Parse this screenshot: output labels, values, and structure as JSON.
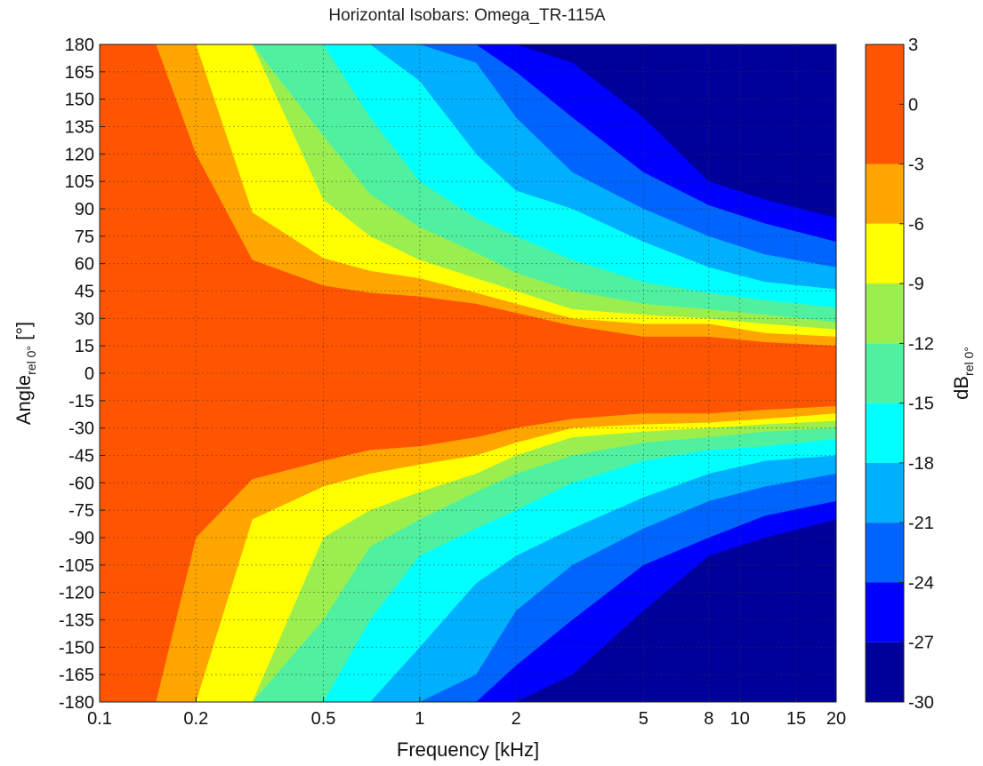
{
  "chart_data": {
    "type": "heatmap",
    "title": "Horizontal Isobars: Omega_TR-115A",
    "xlabel": "Frequency [kHz]",
    "ylabel": {
      "main": "Angle",
      "subscript": "rel 0°",
      "unit": " [°]"
    },
    "colorbar_label": {
      "main": "dB",
      "subscript": "rel 0°"
    },
    "x_scale": "log",
    "xlim": [
      0.1,
      20
    ],
    "ylim": [
      -180,
      180
    ],
    "x_ticks": [
      0.1,
      0.2,
      0.5,
      1,
      2,
      5,
      8,
      10,
      15,
      20
    ],
    "x_tick_labels": [
      "0.1",
      "0.2",
      "0.5",
      "1",
      "2",
      "5",
      "8",
      "10",
      "15",
      "20"
    ],
    "y_ticks": [
      180,
      165,
      150,
      135,
      120,
      105,
      90,
      75,
      60,
      45,
      30,
      15,
      0,
      -15,
      -30,
      -45,
      -60,
      -75,
      -90,
      -105,
      -120,
      -135,
      -150,
      -165,
      -180
    ],
    "grid": true,
    "colorbar": {
      "levels": [
        3,
        0,
        -3,
        -6,
        -9,
        -12,
        -15,
        -18,
        -21,
        -24,
        -27,
        -30
      ],
      "colors": [
        "#ff5500",
        "#ffa500",
        "#ffff00",
        "#9aef4f",
        "#4ff0a0",
        "#00ffff",
        "#00b0ff",
        "#0064ff",
        "#0000ff",
        "#00009a"
      ]
    },
    "isobars": {
      "description": "Angle (deg) at which the level drops to each threshold, upper (+) and lower (-) halves",
      "frequency_khz": [
        0.1,
        0.15,
        0.2,
        0.3,
        0.5,
        0.7,
        1,
        1.5,
        2,
        3,
        5,
        8,
        12,
        20
      ],
      "upper": [
        {
          "threshold": -3,
          "angle": [
            180,
            180,
            120,
            62,
            48,
            44,
            42,
            38,
            33,
            26,
            20,
            20,
            17,
            15
          ]
        },
        {
          "threshold": -6,
          "angle": [
            180,
            180,
            180,
            88,
            63,
            56,
            52,
            44,
            38,
            30,
            27,
            27,
            22,
            20
          ]
        },
        {
          "threshold": -9,
          "angle": [
            180,
            180,
            180,
            180,
            95,
            75,
            62,
            52,
            45,
            35,
            32,
            30,
            27,
            24
          ]
        },
        {
          "threshold": -12,
          "angle": [
            180,
            180,
            180,
            180,
            130,
            98,
            80,
            66,
            55,
            45,
            38,
            35,
            32,
            28
          ]
        },
        {
          "threshold": -15,
          "angle": [
            180,
            180,
            180,
            180,
            180,
            140,
            105,
            85,
            75,
            62,
            50,
            44,
            40,
            36
          ]
        },
        {
          "threshold": -18,
          "angle": [
            180,
            180,
            180,
            180,
            180,
            180,
            160,
            120,
            100,
            90,
            72,
            58,
            50,
            46
          ]
        },
        {
          "threshold": -21,
          "angle": [
            180,
            180,
            180,
            180,
            180,
            180,
            180,
            170,
            140,
            110,
            90,
            75,
            65,
            58
          ]
        },
        {
          "threshold": -24,
          "angle": [
            180,
            180,
            180,
            180,
            180,
            180,
            180,
            180,
            165,
            140,
            110,
            92,
            82,
            72
          ]
        },
        {
          "threshold": -27,
          "angle": [
            180,
            180,
            180,
            180,
            180,
            180,
            180,
            180,
            180,
            170,
            140,
            105,
            95,
            85
          ]
        }
      ],
      "lower": [
        {
          "threshold": -3,
          "angle": [
            -180,
            -180,
            -90,
            -58,
            -48,
            -42,
            -40,
            -35,
            -30,
            -25,
            -22,
            -22,
            -20,
            -18
          ]
        },
        {
          "threshold": -6,
          "angle": [
            -180,
            -180,
            -180,
            -80,
            -62,
            -55,
            -50,
            -45,
            -38,
            -30,
            -28,
            -27,
            -25,
            -22
          ]
        },
        {
          "threshold": -9,
          "angle": [
            -180,
            -180,
            -180,
            -180,
            -90,
            -75,
            -65,
            -55,
            -45,
            -35,
            -32,
            -30,
            -28,
            -26
          ]
        },
        {
          "threshold": -12,
          "angle": [
            -180,
            -180,
            -180,
            -180,
            -135,
            -95,
            -80,
            -65,
            -55,
            -45,
            -38,
            -35,
            -32,
            -30
          ]
        },
        {
          "threshold": -15,
          "angle": [
            -180,
            -180,
            -180,
            -180,
            -180,
            -135,
            -100,
            -85,
            -75,
            -60,
            -48,
            -42,
            -40,
            -36
          ]
        },
        {
          "threshold": -18,
          "angle": [
            -180,
            -180,
            -180,
            -180,
            -180,
            -180,
            -150,
            -115,
            -100,
            -85,
            -68,
            -55,
            -48,
            -45
          ]
        },
        {
          "threshold": -21,
          "angle": [
            -180,
            -180,
            -180,
            -180,
            -180,
            -180,
            -180,
            -165,
            -130,
            -105,
            -85,
            -70,
            -62,
            -55
          ]
        },
        {
          "threshold": -24,
          "angle": [
            -180,
            -180,
            -180,
            -180,
            -180,
            -180,
            -180,
            -180,
            -160,
            -135,
            -105,
            -90,
            -78,
            -70
          ]
        },
        {
          "threshold": -27,
          "angle": [
            -180,
            -180,
            -180,
            -180,
            -180,
            -180,
            -180,
            -180,
            -180,
            -165,
            -130,
            -100,
            -90,
            -80
          ]
        }
      ]
    }
  }
}
